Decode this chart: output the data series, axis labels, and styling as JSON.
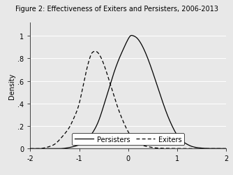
{
  "title": "Figure 2: Effectiveness of Exiters and Persisters, 2006-2013",
  "ylabel": "Density",
  "xlim": [
    -2,
    2
  ],
  "ylim": [
    0,
    1.12
  ],
  "xticks": [
    -2,
    -1,
    0,
    1,
    2
  ],
  "yticks": [
    0,
    0.2,
    0.4,
    0.6,
    0.8,
    1.0
  ],
  "yticklabels": [
    "0",
    ".2",
    ".4",
    ".6",
    ".8",
    "1"
  ],
  "line_color": "#000000",
  "bg_color": "#e8e8e8",
  "plot_bg_color": "#e8e8e8",
  "grid_color": "#ffffff",
  "legend_labels": [
    "Persisters",
    "Exiters"
  ],
  "title_fontsize": 7,
  "label_fontsize": 7,
  "tick_fontsize": 7,
  "legend_fontsize": 7,
  "persisters_x": [
    -2.0,
    -1.8,
    -1.6,
    -1.4,
    -1.2,
    -1.1,
    -1.0,
    -0.9,
    -0.8,
    -0.7,
    -0.6,
    -0.5,
    -0.4,
    -0.3,
    -0.2,
    -0.1,
    0.0,
    0.05,
    0.1,
    0.15,
    0.2,
    0.3,
    0.4,
    0.5,
    0.6,
    0.7,
    0.8,
    0.9,
    1.0,
    1.1,
    1.2,
    1.3,
    1.4,
    1.5,
    1.6,
    1.7,
    1.8,
    2.0
  ],
  "persisters_y": [
    0.0,
    0.0,
    0.0,
    0.0,
    0.01,
    0.02,
    0.035,
    0.06,
    0.1,
    0.16,
    0.25,
    0.38,
    0.52,
    0.66,
    0.78,
    0.88,
    0.97,
    1.0,
    1.0,
    0.99,
    0.97,
    0.9,
    0.8,
    0.68,
    0.55,
    0.42,
    0.3,
    0.2,
    0.12,
    0.07,
    0.04,
    0.02,
    0.01,
    0.005,
    0.002,
    0.001,
    0.001,
    0.0
  ],
  "exiters_x": [
    -2.0,
    -1.8,
    -1.6,
    -1.5,
    -1.4,
    -1.3,
    -1.2,
    -1.1,
    -1.0,
    -0.9,
    -0.8,
    -0.75,
    -0.7,
    -0.65,
    -0.6,
    -0.5,
    -0.4,
    -0.3,
    -0.2,
    -0.1,
    0.0,
    0.1,
    0.2,
    0.3,
    0.4,
    0.5,
    0.6,
    0.7,
    0.8,
    0.9,
    1.0,
    1.1,
    1.2,
    1.4,
    1.6,
    1.8,
    2.0
  ],
  "exiters_y": [
    0.0,
    0.0,
    0.02,
    0.04,
    0.08,
    0.13,
    0.19,
    0.28,
    0.4,
    0.6,
    0.78,
    0.84,
    0.86,
    0.86,
    0.84,
    0.75,
    0.62,
    0.48,
    0.35,
    0.24,
    0.15,
    0.09,
    0.055,
    0.03,
    0.018,
    0.01,
    0.005,
    0.003,
    0.002,
    0.001,
    0.001,
    0.001,
    0.001,
    0.0,
    0.0,
    0.0,
    0.0
  ]
}
